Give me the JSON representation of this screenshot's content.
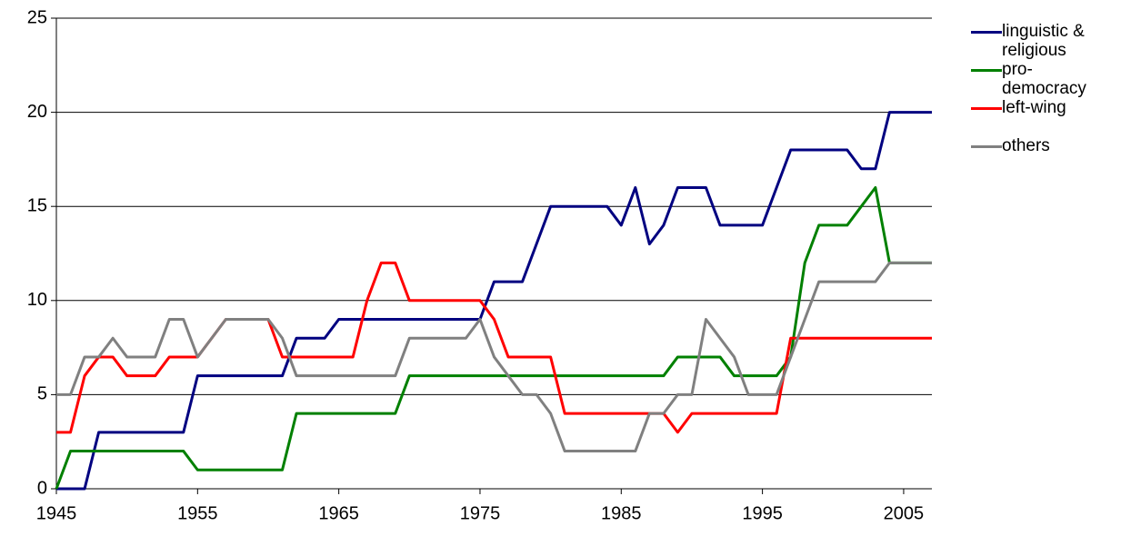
{
  "chart_data": {
    "type": "line",
    "x": [
      1945,
      1946,
      1947,
      1948,
      1949,
      1950,
      1951,
      1952,
      1953,
      1954,
      1955,
      1956,
      1957,
      1958,
      1959,
      1960,
      1961,
      1962,
      1963,
      1964,
      1965,
      1966,
      1967,
      1968,
      1969,
      1970,
      1971,
      1972,
      1973,
      1974,
      1975,
      1976,
      1977,
      1978,
      1979,
      1980,
      1981,
      1982,
      1983,
      1984,
      1985,
      1986,
      1987,
      1988,
      1989,
      1990,
      1991,
      1992,
      1993,
      1994,
      1995,
      1996,
      1997,
      1998,
      1999,
      2000,
      2001,
      2002,
      2003,
      2004,
      2005,
      2006,
      2007
    ],
    "series": [
      {
        "name": "linguistic & religious",
        "color": "#000080",
        "values": [
          0,
          0,
          0,
          3,
          3,
          3,
          3,
          3,
          3,
          3,
          6,
          6,
          6,
          6,
          6,
          6,
          6,
          8,
          8,
          8,
          9,
          9,
          9,
          9,
          9,
          9,
          9,
          9,
          9,
          9,
          9,
          11,
          11,
          11,
          13,
          15,
          15,
          15,
          15,
          15,
          14,
          16,
          13,
          14,
          16,
          16,
          16,
          14,
          14,
          14,
          14,
          16,
          18,
          18,
          18,
          18,
          18,
          17,
          17,
          20,
          20,
          20,
          20
        ]
      },
      {
        "name": "pro-democracy",
        "color": "#008000",
        "values": [
          0,
          2,
          2,
          2,
          2,
          2,
          2,
          2,
          2,
          2,
          1,
          1,
          1,
          1,
          1,
          1,
          1,
          4,
          4,
          4,
          4,
          4,
          4,
          4,
          4,
          6,
          6,
          6,
          6,
          6,
          6,
          6,
          6,
          6,
          6,
          6,
          6,
          6,
          6,
          6,
          6,
          6,
          6,
          6,
          7,
          7,
          7,
          7,
          6,
          6,
          6,
          6,
          7,
          12,
          14,
          14,
          14,
          15,
          16,
          12,
          12,
          12,
          12
        ]
      },
      {
        "name": "left-wing",
        "color": "#ff0000",
        "values": [
          3,
          3,
          6,
          7,
          7,
          6,
          6,
          6,
          7,
          7,
          7,
          8,
          9,
          9,
          9,
          9,
          7,
          7,
          7,
          7,
          7,
          7,
          10,
          12,
          12,
          10,
          10,
          10,
          10,
          10,
          10,
          9,
          7,
          7,
          7,
          7,
          4,
          4,
          4,
          4,
          4,
          4,
          4,
          4,
          3,
          4,
          4,
          4,
          4,
          4,
          4,
          4,
          8,
          8,
          8,
          8,
          8,
          8,
          8,
          8,
          8,
          8,
          8
        ]
      },
      {
        "name": "others",
        "color": "#808080",
        "values": [
          5,
          5,
          7,
          7,
          8,
          7,
          7,
          7,
          9,
          9,
          7,
          8,
          9,
          9,
          9,
          9,
          8,
          6,
          6,
          6,
          6,
          6,
          6,
          6,
          6,
          8,
          8,
          8,
          8,
          8,
          9,
          7,
          6,
          5,
          5,
          4,
          2,
          2,
          2,
          2,
          2,
          2,
          4,
          4,
          5,
          5,
          9,
          8,
          7,
          5,
          5,
          5,
          7,
          9,
          11,
          11,
          11,
          11,
          11,
          12,
          12,
          12,
          12
        ]
      }
    ],
    "xlim": [
      1945,
      2007
    ],
    "xticks": [
      1945,
      1955,
      1965,
      1975,
      1985,
      1995,
      2005
    ],
    "ylim": [
      0,
      25
    ],
    "yticks": [
      0,
      5,
      10,
      15,
      20,
      25
    ],
    "grid": true,
    "legend": "right"
  }
}
